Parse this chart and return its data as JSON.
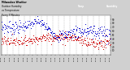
{
  "title_line1": "Milwaukee Weather",
  "title_line2": "Outdoor Humidity",
  "title_line3": "vs Temperature",
  "title_line4": "Every 5 Minutes",
  "humidity_color": "#0000cc",
  "temp_color": "#cc0000",
  "background_color": "#d0d0d0",
  "plot_bg_color": "#ffffff",
  "grid_color": "#999999",
  "legend_temp_label": "Temp",
  "legend_humidity_label": "Humidity",
  "num_points": 288,
  "seed": 7,
  "yticks": [
    10,
    20,
    30,
    40,
    50,
    60,
    70,
    80,
    90
  ],
  "ylim": [
    0,
    100
  ]
}
